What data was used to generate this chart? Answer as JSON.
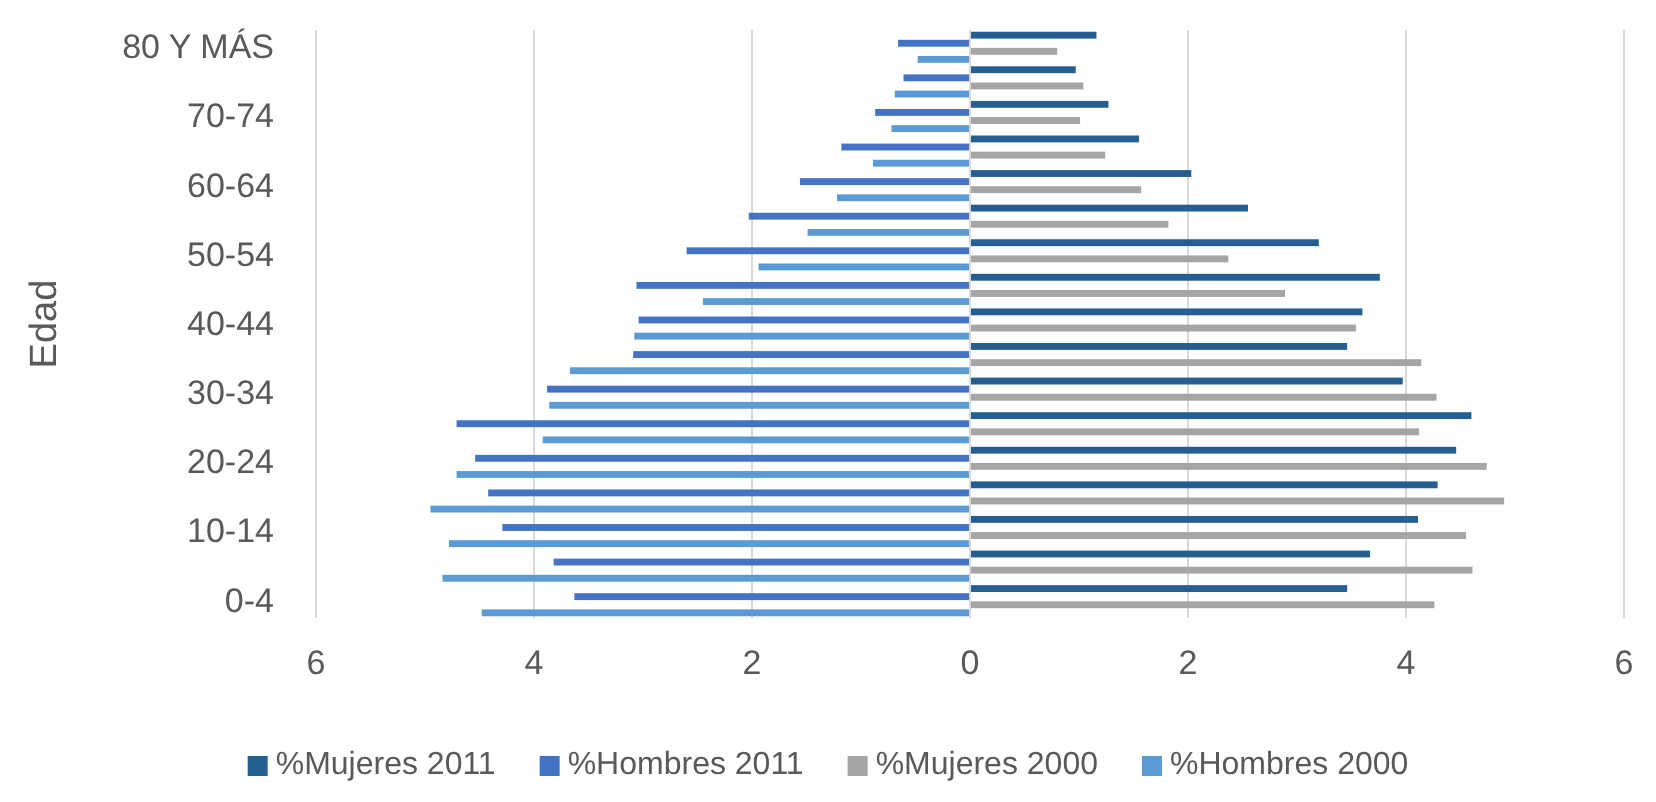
{
  "chart_data": {
    "type": "bar",
    "orientation": "horizontal",
    "ylabel": "Edad",
    "categories": [
      "80 Y MÁS",
      null,
      "70-74",
      null,
      "60-64",
      null,
      "50-54",
      null,
      "40-44",
      null,
      "30-34",
      null,
      "20-24",
      null,
      "10-14",
      null,
      "0-4"
    ],
    "series": [
      {
        "name": "%Mujeres 2011",
        "color": "#255e91",
        "values": [
          1.16,
          0.97,
          1.27,
          1.55,
          2.03,
          2.55,
          3.2,
          3.76,
          3.6,
          3.46,
          3.97,
          4.6,
          4.46,
          4.29,
          4.11,
          3.67,
          3.46
        ]
      },
      {
        "name": "%Hombres 2011",
        "color": "#4472c4",
        "values": [
          -0.66,
          -0.61,
          -0.87,
          -1.18,
          -1.56,
          -2.03,
          -2.6,
          -3.06,
          -3.04,
          -3.09,
          -3.88,
          -4.71,
          -4.54,
          -4.42,
          -4.29,
          -3.82,
          -3.63
        ]
      },
      {
        "name": "%Mujeres 2000",
        "color": "#a5a5a5",
        "values": [
          0.8,
          1.04,
          1.01,
          1.24,
          1.57,
          1.82,
          2.37,
          2.89,
          3.54,
          4.14,
          4.28,
          4.12,
          4.74,
          4.9,
          4.55,
          4.61,
          4.26
        ]
      },
      {
        "name": "%Hombres 2000",
        "color": "#5b9bd5",
        "values": [
          -0.48,
          -0.69,
          -0.72,
          -0.89,
          -1.22,
          -1.49,
          -1.94,
          -2.45,
          -3.08,
          -3.67,
          -3.86,
          -3.92,
          -4.71,
          -4.95,
          -4.78,
          -4.84,
          -4.48
        ]
      }
    ],
    "xlim": [
      -6,
      6
    ],
    "xticks": [
      {
        "value": -6,
        "label": "6"
      },
      {
        "value": -4,
        "label": "4"
      },
      {
        "value": -2,
        "label": "2"
      },
      0,
      2,
      4,
      6
    ],
    "grid": "x",
    "legend": "bottom"
  }
}
